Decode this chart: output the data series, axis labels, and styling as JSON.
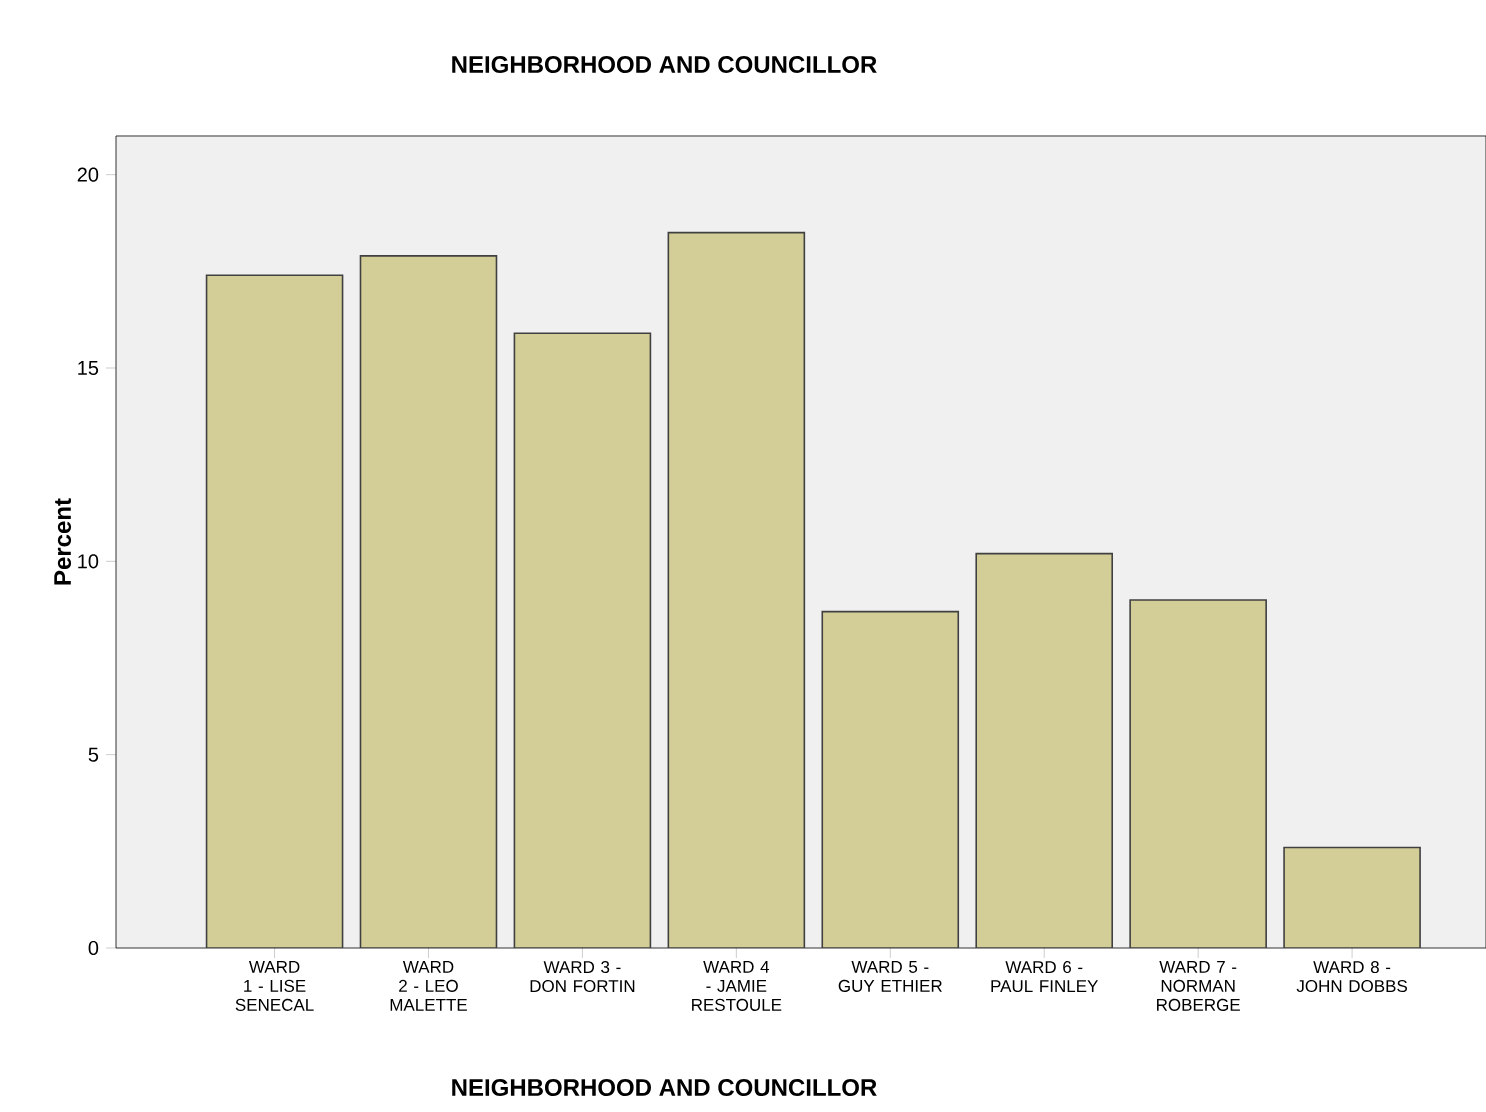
{
  "chart_data": {
    "type": "bar",
    "title": "NEIGHBORHOOD AND COUNCILLOR",
    "xlabel": "NEIGHBORHOOD AND COUNCILLOR",
    "ylabel": "Percent",
    "categories": [
      "WARD 1 - LISE SENECAL",
      "WARD 2 - LEO MALETTE",
      "WARD 3 - DON FORTIN",
      "WARD 4 - JAMIE RESTOULE",
      "WARD 5 - GUY ETHIER",
      "WARD 6 - PAUL FINLEY",
      "WARD 7 - NORMAN ROBERGE",
      "WARD 8 - JOHN DOBBS"
    ],
    "values": [
      17.4,
      17.9,
      15.9,
      18.5,
      8.7,
      10.2,
      9.0,
      2.6
    ],
    "color": "#d3ce97",
    "ylim": [
      0,
      21
    ],
    "yticks": [
      0,
      5,
      10,
      15,
      20
    ]
  }
}
